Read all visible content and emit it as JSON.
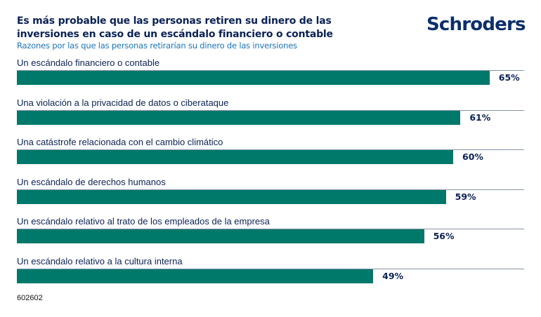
{
  "header": {
    "title": "Es más probable que las personas retiren su dinero de las inversiones en caso de un escándalo financiero o contable",
    "subtitle": "Razones por las que las personas retirarían su dinero de las inversiones",
    "logo_text": "Schroders"
  },
  "footer": {
    "code": "602602"
  },
  "colors": {
    "bar": "#00786a",
    "title": "#0b2254",
    "subtitle": "#1a74b8",
    "logo": "#0b2f6b"
  },
  "chart_data": {
    "type": "bar",
    "orientation": "horizontal",
    "title": "Es más probable que las personas retiren su dinero de las inversiones en caso de un escándalo financiero o contable",
    "subtitle": "Razones por las que las personas retirarían su dinero de las inversiones",
    "xlabel": "",
    "ylabel": "",
    "unit": "%",
    "xlim": [
      0,
      70
    ],
    "grid": false,
    "categories": [
      "Un escándalo financiero o contable",
      "Una violación a la privacidad de datos o ciberataque",
      "Una catástrofe relacionada con el cambio climático",
      "Un escándalo de derechos humanos",
      "Un escándalo relativo al trato de los empleados de la empresa",
      "Un escándalo relativo a la cultura interna"
    ],
    "values": [
      65,
      61,
      60,
      59,
      56,
      49
    ],
    "data_labels": [
      "65%",
      "61%",
      "60%",
      "59%",
      "56%",
      "49%"
    ]
  }
}
